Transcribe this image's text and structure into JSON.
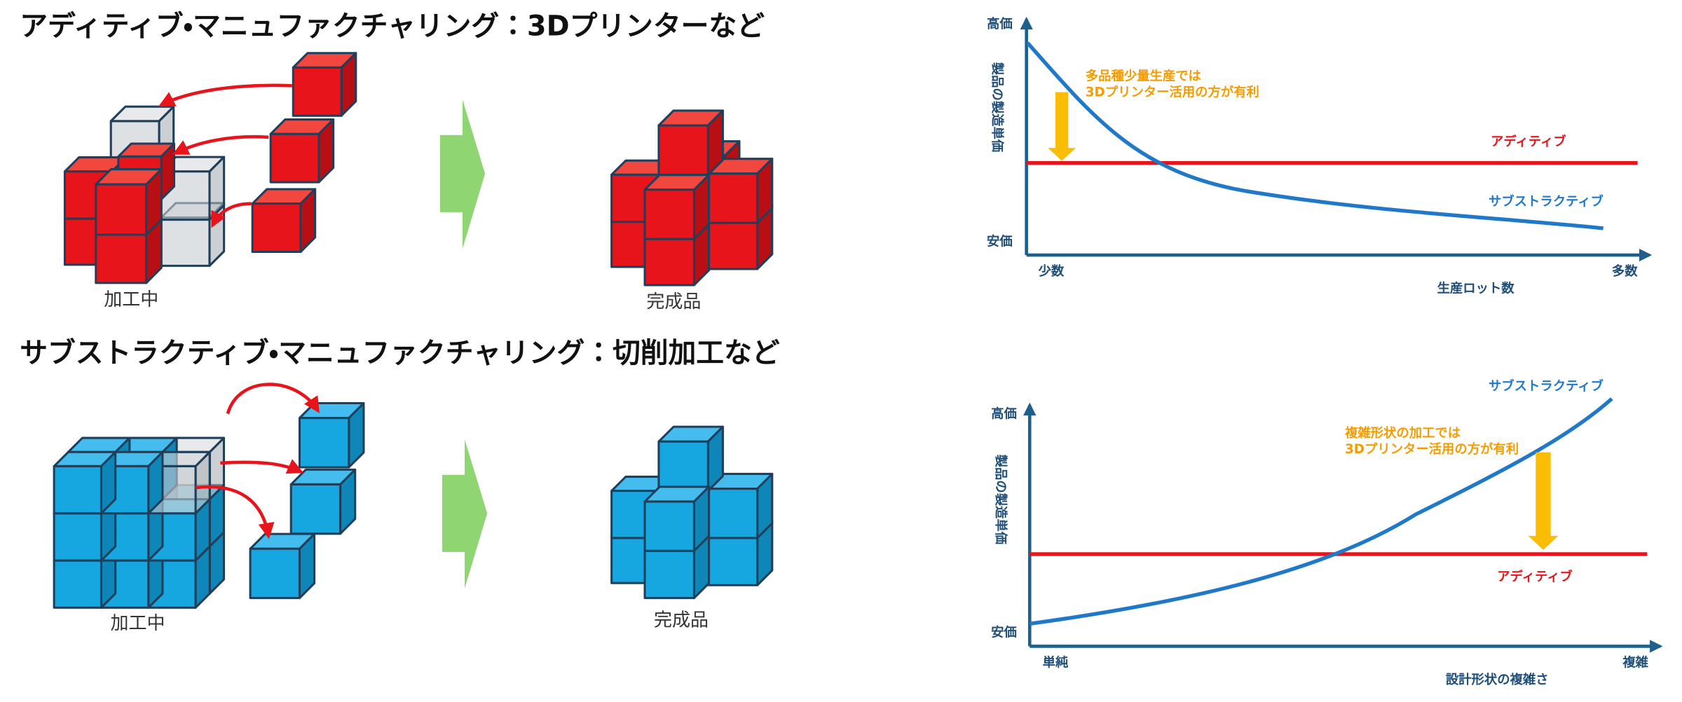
{
  "additive": {
    "title": "アディティブ・マニュファクチャリング：3Dプリンターなど",
    "in_progress": "加工中",
    "finished": "完成品"
  },
  "subtractive": {
    "title": "サブストラクティブ・マニュファクチャリング：切削加工など",
    "in_progress": "加工中",
    "finished": "完成品"
  },
  "lot_chart": {
    "y_high": "高価",
    "y_low": "安価",
    "y_label": "製品の製造単価",
    "x_low": "少数",
    "x_high": "多数",
    "x_label": "生産ロット数",
    "note": [
      "多品種少量生産では",
      "3Dプリンター活用の方が有利"
    ],
    "additive_label": "アディティブ",
    "subtractive_label": "サブストラクティブ"
  },
  "complexity_chart": {
    "y_high": "高価",
    "y_low": "安価",
    "y_label": "製品の製造単価",
    "x_low": "単純",
    "x_high": "複雑",
    "x_label": "設計形状の複雑さ",
    "note": [
      "複雑形状の加工では",
      "3Dプリンター活用の方が有利"
    ],
    "additive_label": "アディティブ",
    "subtractive_label": "サブストラクティブ"
  }
}
